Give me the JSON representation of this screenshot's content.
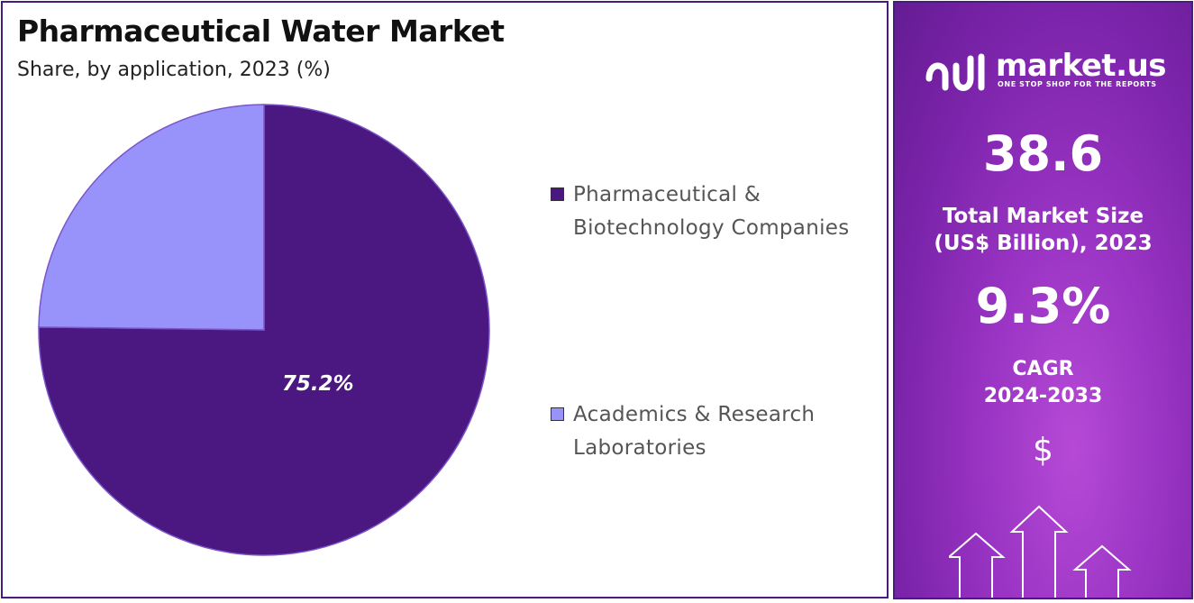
{
  "chart_data": {
    "type": "pie",
    "title": "Pharmaceutical Water Market",
    "subtitle": "Share, by application, 2023 (%)",
    "slices": [
      {
        "label": "Pharmaceutical & Biotechnology Companies",
        "value": 75.2,
        "color": "#4b1780",
        "data_label": "75.2%"
      },
      {
        "label": "Academics & Research Laboratories",
        "value": 24.8,
        "color": "#9893fb",
        "data_label": ""
      }
    ],
    "start_angle_deg": 0,
    "direction": "clockwise",
    "legend_position": "right"
  },
  "sidebar": {
    "logo_name": "market.us",
    "logo_tagline": "ONE STOP SHOP FOR THE REPORTS",
    "market_size_value": "38.6",
    "market_size_label_line1": "Total Market Size",
    "market_size_label_line2": "(US$ Billion), 2023",
    "cagr_value": "9.3%",
    "cagr_label_line1": "CAGR",
    "cagr_label_line2": "2024-2033",
    "dollar_symbol": "$",
    "icons": [
      "market-us-logo-icon",
      "dollar-icon",
      "growth-arrows-icon"
    ]
  }
}
